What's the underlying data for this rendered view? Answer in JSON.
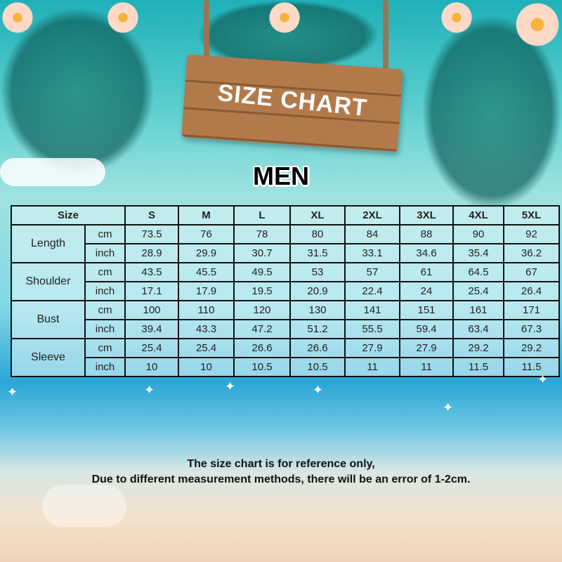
{
  "sign_title": "SIZE CHART",
  "section": "MEN",
  "table": {
    "header_label": "Size",
    "sizes": [
      "S",
      "M",
      "L",
      "XL",
      "2XL",
      "3XL",
      "4XL",
      "5XL"
    ],
    "rows": [
      {
        "measure": "Length",
        "cm": [
          "73.5",
          "76",
          "78",
          "80",
          "84",
          "88",
          "90",
          "92"
        ],
        "inch": [
          "28.9",
          "29.9",
          "30.7",
          "31.5",
          "33.1",
          "34.6",
          "35.4",
          "36.2"
        ]
      },
      {
        "measure": "Shoulder",
        "cm": [
          "43.5",
          "45.5",
          "49.5",
          "53",
          "57",
          "61",
          "64.5",
          "67"
        ],
        "inch": [
          "17.1",
          "17.9",
          "19.5",
          "20.9",
          "22.4",
          "24",
          "25.4",
          "26.4"
        ]
      },
      {
        "measure": "Bust",
        "cm": [
          "100",
          "110",
          "120",
          "130",
          "141",
          "151",
          "161",
          "171"
        ],
        "inch": [
          "39.4",
          "43.3",
          "47.2",
          "51.2",
          "55.5",
          "59.4",
          "63.4",
          "67.3"
        ]
      },
      {
        "measure": "Sleeve",
        "cm": [
          "25.4",
          "25.4",
          "26.6",
          "26.6",
          "27.9",
          "27.9",
          "29.2",
          "29.2"
        ],
        "inch": [
          "10",
          "10",
          "10.5",
          "10.5",
          "11",
          "11",
          "11.5",
          "11.5"
        ]
      }
    ],
    "unit_cm": "cm",
    "unit_inch": "inch"
  },
  "note_line1": "The size chart is for reference only,",
  "note_line2": "Due to different measurement methods, there will be an error of 1-2cm."
}
